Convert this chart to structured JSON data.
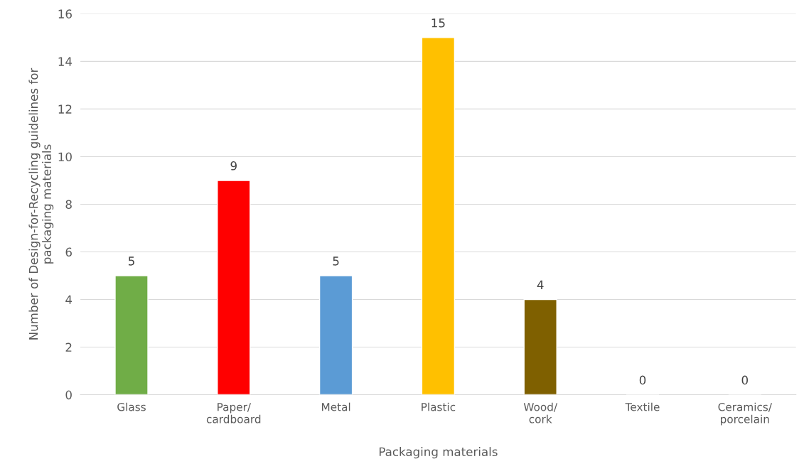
{
  "chart_data": {
    "type": "bar",
    "categories": [
      "Glass",
      "Paper/\ncardboard",
      "Metal",
      "Plastic",
      "Wood/\ncork",
      "Textile",
      "Ceramics/\nporcelain"
    ],
    "values": [
      5,
      9,
      5,
      15,
      4,
      0,
      0
    ],
    "colors": [
      "#70ad47",
      "#ff0000",
      "#5b9bd5",
      "#ffc000",
      "#7f6000",
      null,
      null
    ],
    "xlabel": "Packaging materials",
    "ylabel": "Number of Design-for-Recycling guidelines for\npackaging materials",
    "ylim": [
      0,
      16
    ],
    "yticks": [
      0,
      2,
      4,
      6,
      8,
      10,
      12,
      14,
      16
    ],
    "grid": "y",
    "data_labels": true
  }
}
